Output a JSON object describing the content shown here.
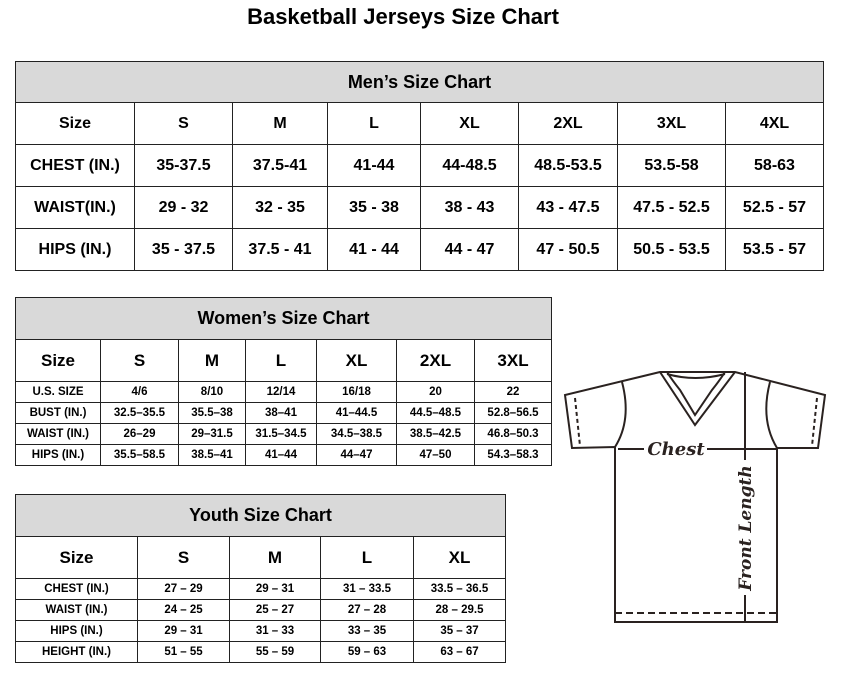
{
  "title": "Basketball Jerseys Size Chart",
  "men": {
    "caption": "Men’s Size Chart",
    "header": [
      "Size",
      "S",
      "M",
      "L",
      "XL",
      "2XL",
      "3XL",
      "4XL"
    ],
    "rows": [
      [
        "CHEST (IN.)",
        "35-37.5",
        "37.5-41",
        "41-44",
        "44-48.5",
        "48.5-53.5",
        "53.5-58",
        "58-63"
      ],
      [
        "WAIST(IN.)",
        "29 - 32",
        "32 - 35",
        "35 - 38",
        "38 - 43",
        "43 - 47.5",
        "47.5 - 52.5",
        "52.5 - 57"
      ],
      [
        "HIPS (IN.)",
        "35 - 37.5",
        "37.5 - 41",
        "41 - 44",
        "44 - 47",
        "47 - 50.5",
        "50.5 - 53.5",
        "53.5 - 57"
      ]
    ]
  },
  "women": {
    "caption": "Women’s Size Chart",
    "header": [
      "Size",
      "S",
      "M",
      "L",
      "XL",
      "2XL",
      "3XL"
    ],
    "rows": [
      [
        "U.S.  SIZE",
        "4/6",
        "8/10",
        "12/14",
        "16/18",
        "20",
        "22"
      ],
      [
        "BUST  (IN.)",
        "32.5–35.5",
        "35.5–38",
        "38–41",
        "41–44.5",
        "44.5–48.5",
        "52.8–56.5"
      ],
      [
        "WAIST  (IN.)",
        "26–29",
        "29–31.5",
        "31.5–34.5",
        "34.5–38.5",
        "38.5–42.5",
        "46.8–50.3"
      ],
      [
        "HIPS  (IN.)",
        "35.5–58.5",
        "38.5–41",
        "41–44",
        "44–47",
        "47–50",
        "54.3–58.3"
      ]
    ]
  },
  "youth": {
    "caption": "Youth Size Chart",
    "header": [
      "Size",
      "S",
      "M",
      "L",
      "XL"
    ],
    "rows": [
      [
        "CHEST  (IN.)",
        "27  –  29",
        "29  –  31",
        "31  –  33.5",
        "33.5  –  36.5"
      ],
      [
        "WAIST  (IN.)",
        "24  –  25",
        "25  –  27",
        "27  –  28",
        "28  –  29.5"
      ],
      [
        "HIPS  (IN.)",
        "29  –  31",
        "31  –  33",
        "33  –  35",
        "35  –  37"
      ],
      [
        "HEIGHT  (IN.)",
        "51  –  55",
        "55  –  59",
        "59  –  63",
        "63  –  67"
      ]
    ]
  },
  "diagram": {
    "chest_label": "Chest",
    "length_label": "Front Length"
  }
}
